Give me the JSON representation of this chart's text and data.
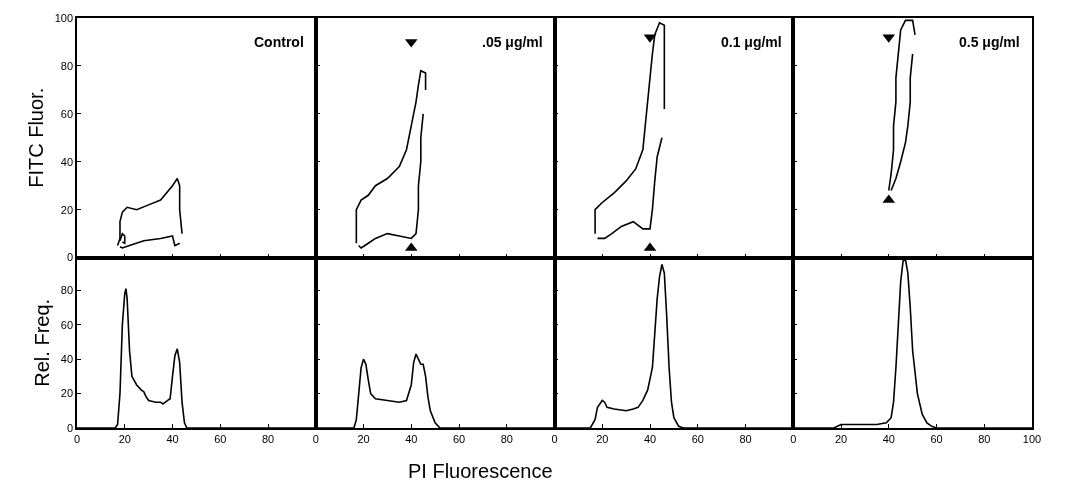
{
  "chart_data": [
    {
      "type": "line",
      "ylabel": "FITC Fluor.",
      "annotations": [
        "Control"
      ],
      "xlim": [
        0,
        100
      ],
      "ylim": [
        0,
        100
      ],
      "xticks": [
        0,
        20,
        40,
        60,
        80,
        100
      ],
      "yticks": [
        0,
        20,
        40,
        60,
        80,
        100
      ],
      "tick_labels": "y",
      "series": [
        {
          "color": "#000000",
          "x": [
            17,
            18,
            18,
            19,
            21,
            25,
            30,
            35,
            40,
            42,
            43,
            43,
            44
          ],
          "values": [
            5,
            8,
            15,
            19,
            21,
            20,
            22,
            24,
            30,
            33,
            30,
            20,
            10
          ]
        },
        {
          "color": "#000000",
          "x": [
            18,
            19,
            22,
            28,
            35,
            40,
            41,
            43
          ],
          "values": [
            4.5,
            4,
            5,
            7,
            8,
            9,
            5,
            6
          ]
        },
        {
          "color": "#000000",
          "x": [
            18,
            19,
            20,
            20,
            19
          ],
          "values": [
            7,
            10,
            9,
            6,
            6.5
          ]
        }
      ]
    },
    {
      "type": "line",
      "annotations": [
        ".05 μg/ml"
      ],
      "xlim": [
        0,
        100
      ],
      "ylim": [
        0,
        100
      ],
      "xticks": [
        0,
        20,
        40,
        60,
        80,
        100
      ],
      "yticks": [
        0,
        20,
        40,
        60,
        80,
        100
      ],
      "tick_labels": false,
      "series": [
        {
          "color": "#000000",
          "x": [
            17,
            17,
            19,
            22,
            25,
            30,
            35,
            38,
            40,
            42,
            43,
            44,
            46,
            46
          ],
          "values": [
            6,
            20,
            24,
            26,
            30,
            33,
            38,
            45,
            55,
            65,
            72,
            78,
            77,
            70
          ]
        },
        {
          "color": "#000000",
          "x": [
            18,
            19,
            22,
            25,
            30,
            35,
            40,
            42,
            43,
            43,
            44,
            44,
            45
          ],
          "values": [
            5,
            4,
            6,
            8,
            10,
            9,
            8,
            10,
            20,
            30,
            40,
            50,
            60
          ]
        },
        {
          "type": "scatter",
          "marker": "triangle-down",
          "color": "#000000",
          "x": [
            40
          ],
          "values": [
            90
          ]
        },
        {
          "type": "scatter",
          "marker": "triangle",
          "color": "#000000",
          "x": [
            40
          ],
          "values": [
            4
          ]
        }
      ]
    },
    {
      "type": "line",
      "annotations": [
        "0.1 μg/ml"
      ],
      "xlim": [
        0,
        100
      ],
      "ylim": [
        0,
        100
      ],
      "xticks": [
        0,
        20,
        40,
        60,
        80,
        100
      ],
      "yticks": [
        0,
        20,
        40,
        60,
        80,
        100
      ],
      "tick_labels": false,
      "series": [
        {
          "color": "#000000",
          "x": [
            17,
            17,
            20,
            25,
            30,
            34,
            37,
            38,
            39,
            40,
            41,
            42,
            44,
            46,
            46,
            46,
            46
          ],
          "values": [
            10,
            20,
            23,
            27,
            32,
            37,
            45,
            55,
            65,
            75,
            85,
            93,
            98,
            97,
            88,
            75,
            62
          ]
        },
        {
          "color": "#000000",
          "x": [
            18,
            21,
            24,
            28,
            33,
            37,
            40,
            41,
            42,
            43,
            45
          ],
          "values": [
            8,
            8,
            10,
            13,
            15,
            12,
            12,
            20,
            32,
            42,
            50
          ]
        },
        {
          "type": "scatter",
          "marker": "triangle-down",
          "color": "#000000",
          "x": [
            40
          ],
          "values": [
            92
          ]
        },
        {
          "type": "scatter",
          "marker": "triangle",
          "color": "#000000",
          "x": [
            40
          ],
          "values": [
            4
          ]
        }
      ]
    },
    {
      "type": "line",
      "annotations": [
        "0.5 μg/ml"
      ],
      "xlim": [
        0,
        100
      ],
      "ylim": [
        0,
        100
      ],
      "xticks": [
        0,
        20,
        40,
        60,
        80,
        100
      ],
      "yticks": [
        0,
        20,
        40,
        60,
        80,
        100
      ],
      "tick_labels": false,
      "series": [
        {
          "color": "#000000",
          "x": [
            40,
            41,
            42,
            42,
            43,
            43,
            44,
            45,
            47,
            50,
            51
          ],
          "values": [
            28,
            35,
            45,
            55,
            65,
            75,
            85,
            95,
            99,
            99,
            93
          ]
        },
        {
          "color": "#000000",
          "x": [
            41,
            43,
            45,
            47,
            48,
            49,
            49,
            50
          ],
          "values": [
            28,
            33,
            40,
            48,
            55,
            65,
            75,
            85
          ]
        },
        {
          "type": "scatter",
          "marker": "triangle-down",
          "color": "#000000",
          "x": [
            40
          ],
          "values": [
            92
          ]
        },
        {
          "type": "scatter",
          "marker": "triangle",
          "color": "#000000",
          "x": [
            40
          ],
          "values": [
            24
          ]
        }
      ]
    },
    {
      "type": "line",
      "ylabel": "Rel. Freq.",
      "xlim": [
        0,
        100
      ],
      "ylim": [
        0,
        99
      ],
      "xticks": [
        0,
        20,
        40,
        60,
        80
      ],
      "yticks": [
        0,
        20,
        40,
        60,
        80
      ],
      "series": [
        {
          "color": "#000000",
          "x": [
            0,
            16,
            17,
            18,
            19,
            20,
            20.5,
            21,
            22,
            23,
            25,
            27,
            28,
            29,
            30,
            33,
            35,
            36,
            38,
            39,
            40,
            41,
            42,
            43,
            44,
            45,
            46,
            100
          ],
          "values": [
            0,
            0,
            2,
            20,
            60,
            78,
            81,
            75,
            45,
            30,
            25,
            22,
            21,
            18,
            16,
            15,
            15,
            14,
            16,
            17,
            30,
            42,
            46,
            38,
            15,
            3,
            0,
            0
          ]
        }
      ]
    },
    {
      "type": "line",
      "xlabel": "PI Fluorescence",
      "xlim": [
        0,
        100
      ],
      "ylim": [
        0,
        99
      ],
      "xticks": [
        0,
        20,
        40,
        60,
        80
      ],
      "yticks": [
        0,
        20,
        40,
        60,
        80
      ],
      "tick_labels": "x",
      "series": [
        {
          "color": "#000000",
          "x": [
            0,
            16,
            17,
            18,
            19,
            20,
            21,
            22,
            23,
            25,
            30,
            35,
            38,
            40,
            41,
            42,
            43,
            44,
            45,
            46,
            47,
            48,
            50,
            52,
            100
          ],
          "values": [
            0,
            0,
            5,
            20,
            35,
            40,
            37,
            28,
            20,
            17,
            16,
            15,
            16,
            25,
            38,
            43,
            40,
            37,
            37,
            30,
            18,
            10,
            3,
            0,
            0
          ]
        }
      ]
    },
    {
      "type": "line",
      "xlim": [
        0,
        100
      ],
      "ylim": [
        0,
        99
      ],
      "xticks": [
        0,
        20,
        40,
        60,
        80
      ],
      "yticks": [
        0,
        20,
        40,
        60,
        80
      ],
      "tick_labels": "x",
      "series": [
        {
          "color": "#000000",
          "x": [
            0,
            15,
            17,
            18,
            20,
            21,
            22,
            25,
            30,
            33,
            35,
            37,
            39,
            41,
            42,
            43,
            44,
            45,
            46,
            47,
            48,
            49,
            50,
            52,
            54,
            100
          ],
          "values": [
            0,
            0,
            5,
            12,
            16,
            15,
            12,
            11,
            10,
            11,
            12,
            16,
            22,
            35,
            55,
            75,
            88,
            95,
            90,
            65,
            35,
            15,
            6,
            1,
            0,
            0
          ]
        }
      ]
    },
    {
      "type": "line",
      "xlim": [
        0,
        100
      ],
      "ylim": [
        0,
        99
      ],
      "xticks": [
        0,
        20,
        40,
        60,
        80,
        100
      ],
      "yticks": [
        0,
        20,
        40,
        60,
        80
      ],
      "tick_labels": "x",
      "series": [
        {
          "color": "#000000",
          "x": [
            0,
            17,
            20,
            25,
            30,
            35,
            39,
            41,
            42,
            43,
            44,
            45,
            46,
            47,
            48,
            49,
            50,
            52,
            54,
            56,
            58,
            60,
            100
          ],
          "values": [
            0,
            0,
            2,
            2,
            2,
            2,
            3,
            6,
            15,
            35,
            60,
            85,
            97,
            98,
            90,
            70,
            45,
            20,
            8,
            3,
            1,
            0,
            0
          ]
        }
      ]
    }
  ]
}
